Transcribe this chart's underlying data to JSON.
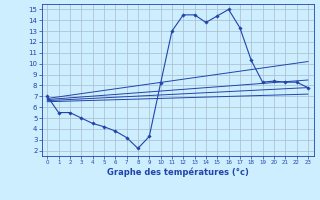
{
  "xlabel": "Graphe des températures (°c)",
  "background_color": "#cceeff",
  "grid_color": "#aabbcc",
  "line_color": "#2244aa",
  "xlim": [
    -0.5,
    23.5
  ],
  "ylim": [
    1.5,
    15.5
  ],
  "x_ticks": [
    0,
    1,
    2,
    3,
    4,
    5,
    6,
    7,
    8,
    9,
    10,
    11,
    12,
    13,
    14,
    15,
    16,
    17,
    18,
    19,
    20,
    21,
    22,
    23
  ],
  "y_ticks": [
    2,
    3,
    4,
    5,
    6,
    7,
    8,
    9,
    10,
    11,
    12,
    13,
    14,
    15
  ],
  "series": {
    "temp_actual": {
      "x": [
        0,
        1,
        2,
        3,
        4,
        5,
        6,
        7,
        8,
        9,
        10,
        11,
        12,
        13,
        14,
        15,
        16,
        17,
        18,
        19,
        20,
        21,
        22,
        23
      ],
      "y": [
        7.0,
        5.5,
        5.5,
        5.0,
        4.5,
        4.2,
        3.8,
        3.2,
        2.2,
        3.3,
        8.2,
        13.0,
        14.5,
        14.5,
        13.8,
        14.4,
        15.0,
        13.3,
        10.3,
        8.3,
        8.4,
        8.3,
        8.3,
        7.8
      ]
    },
    "line1": {
      "x": [
        0,
        23
      ],
      "y": [
        6.5,
        7.2
      ]
    },
    "line2": {
      "x": [
        0,
        23
      ],
      "y": [
        6.6,
        7.8
      ]
    },
    "line3": {
      "x": [
        0,
        23
      ],
      "y": [
        6.7,
        8.5
      ]
    },
    "line4": {
      "x": [
        0,
        23
      ],
      "y": [
        6.8,
        10.2
      ]
    }
  }
}
